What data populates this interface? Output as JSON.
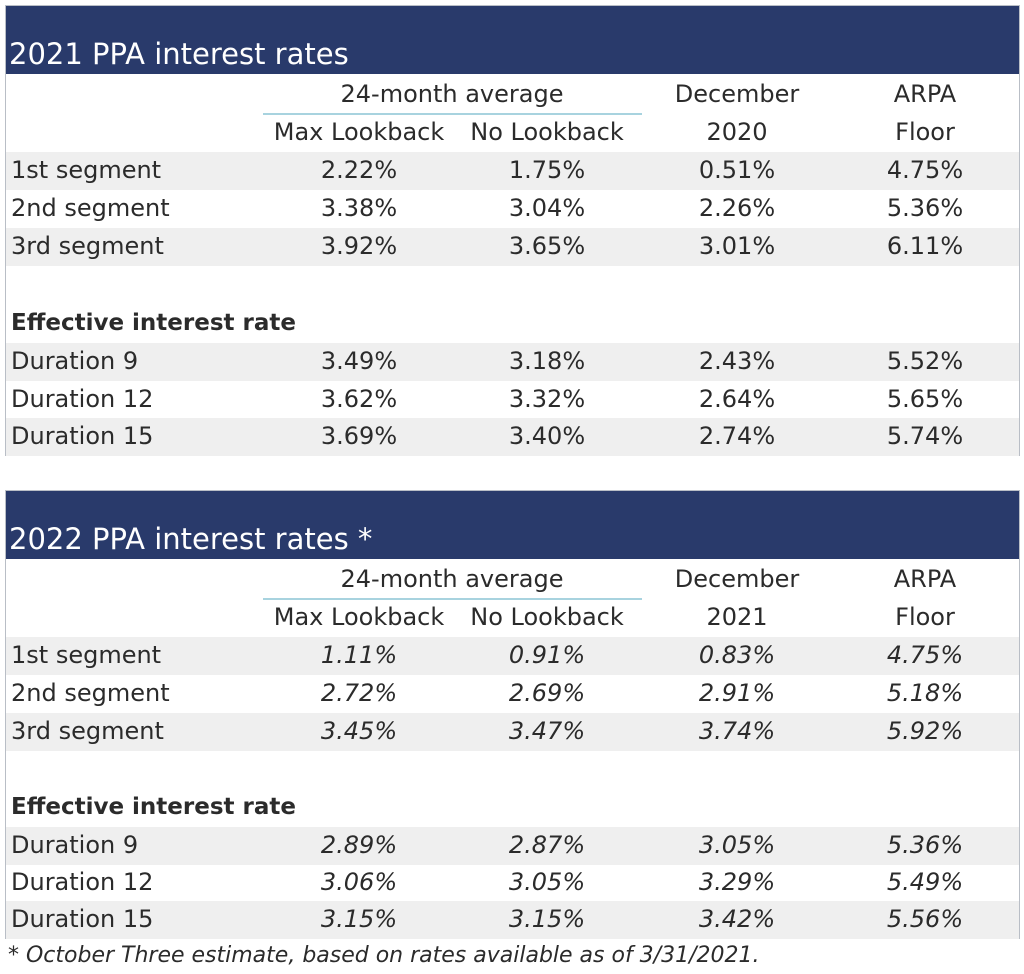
{
  "tables": [
    {
      "title": "2021 PPA interest rates",
      "headers": {
        "group_label": "24-month average",
        "max_lookback": "Max Lookback",
        "no_lookback": "No Lookback",
        "december_line1": "December",
        "december_line2": "2020",
        "arpa_line1": "ARPA",
        "arpa_line2": "Floor"
      },
      "segments": [
        {
          "label": "1st segment",
          "values": [
            "2.22%",
            "1.75%",
            "0.51%",
            "4.75%"
          ]
        },
        {
          "label": "2nd segment",
          "values": [
            "3.38%",
            "3.04%",
            "2.26%",
            "5.36%"
          ]
        },
        {
          "label": "3rd segment",
          "values": [
            "3.92%",
            "3.65%",
            "3.01%",
            "6.11%"
          ]
        }
      ],
      "effective_heading": "Effective interest rate",
      "durations": [
        {
          "label": "Duration 9",
          "values": [
            "3.49%",
            "3.18%",
            "2.43%",
            "5.52%"
          ]
        },
        {
          "label": "Duration 12",
          "values": [
            "3.62%",
            "3.32%",
            "2.64%",
            "5.65%"
          ]
        },
        {
          "label": "Duration 15",
          "values": [
            "3.69%",
            "3.40%",
            "2.74%",
            "5.74%"
          ]
        }
      ],
      "values_italic": false
    },
    {
      "title": "2022 PPA interest rates *",
      "headers": {
        "group_label": "24-month average",
        "max_lookback": "Max Lookback",
        "no_lookback": "No Lookback",
        "december_line1": "December",
        "december_line2": "2021",
        "arpa_line1": "ARPA",
        "arpa_line2": "Floor"
      },
      "segments": [
        {
          "label": "1st segment",
          "values": [
            "1.11%",
            "0.91%",
            "0.83%",
            "4.75%"
          ]
        },
        {
          "label": "2nd segment",
          "values": [
            "2.72%",
            "2.69%",
            "2.91%",
            "5.18%"
          ]
        },
        {
          "label": "3rd segment",
          "values": [
            "3.45%",
            "3.47%",
            "3.74%",
            "5.92%"
          ]
        }
      ],
      "effective_heading": "Effective interest rate",
      "durations": [
        {
          "label": "Duration 9",
          "values": [
            "2.89%",
            "2.87%",
            "3.05%",
            "5.36%"
          ]
        },
        {
          "label": "Duration 12",
          "values": [
            "3.06%",
            "3.05%",
            "3.29%",
            "5.49%"
          ]
        },
        {
          "label": "Duration 15",
          "values": [
            "3.15%",
            "3.15%",
            "3.42%",
            "5.56%"
          ]
        }
      ],
      "values_italic": true
    }
  ],
  "footnote": "* October Three estimate, based on rates available as of 3/31/2021.",
  "colors": {
    "title_bar": "#293a6b",
    "header_rule": "#a8d3df",
    "row_shade": "#efefef",
    "border": "#b9bec6"
  }
}
